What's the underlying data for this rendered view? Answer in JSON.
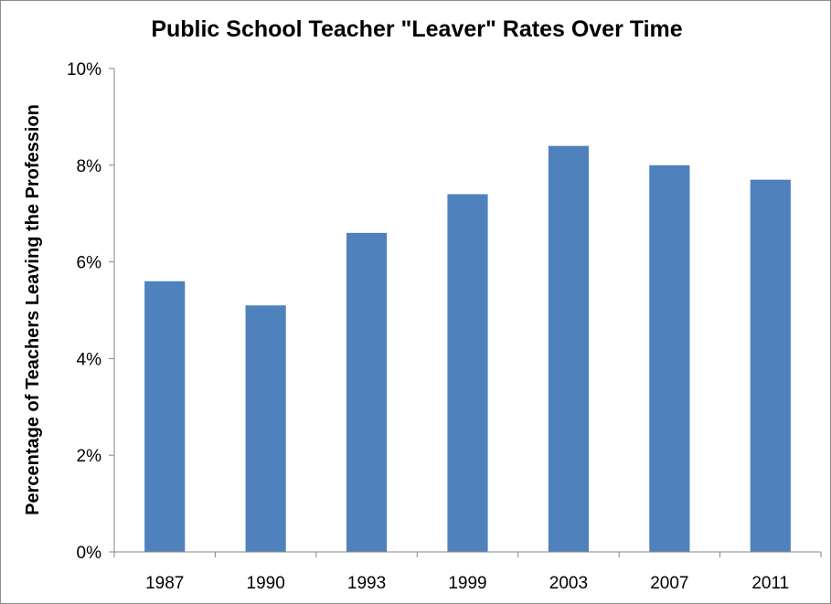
{
  "chart_data": {
    "type": "bar",
    "title": "Public School Teacher \"Leaver\" Rates Over Time",
    "xlabel": "",
    "ylabel": "Percentage of Teachers Leaving the Profession",
    "categories": [
      "1987",
      "1990",
      "1993",
      "1999",
      "2003",
      "2007",
      "2011"
    ],
    "values": [
      5.6,
      5.1,
      6.6,
      7.4,
      8.4,
      8.0,
      7.7
    ],
    "value_unit": "%",
    "ylim": [
      0,
      10
    ],
    "yticks": [
      0,
      2,
      4,
      6,
      8,
      10
    ],
    "ytick_labels": [
      "0%",
      "2%",
      "4%",
      "6%",
      "8%",
      "10%"
    ],
    "grid": false,
    "legend": "none",
    "bar_color": "#4F81BD"
  }
}
